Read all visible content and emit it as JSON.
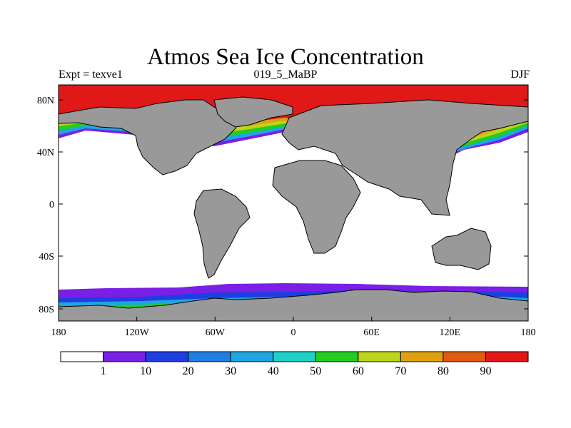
{
  "title": "Atmos Sea Ice Concentration",
  "left_string": "Expt = texve1",
  "center_string": "019_5_MaBP",
  "right_string": "DJF",
  "colors": {
    "land": "#999999",
    "ocean": "#ffffff",
    "border": "#000000"
  },
  "map": {
    "projection": "cylindrical-equidistant",
    "lon_range": [
      -180,
      180
    ],
    "lat_range": [
      -90,
      90
    ],
    "lon_ticks": [
      "180",
      "120W",
      "60W",
      "0",
      "60E",
      "120E",
      "180"
    ],
    "lat_ticks": [
      "80N",
      "40N",
      "0",
      "40S",
      "80S"
    ]
  },
  "colorbar": {
    "colors": [
      "#ffffff",
      "#7a1fe6",
      "#1e3ee0",
      "#1f7fe0",
      "#1fa6e0",
      "#1fd0c8",
      "#22cc22",
      "#bcd41a",
      "#e0a010",
      "#e05a10",
      "#e01818"
    ],
    "labels": [
      "1",
      "10",
      "20",
      "30",
      "40",
      "50",
      "60",
      "70",
      "80",
      "90"
    ]
  }
}
